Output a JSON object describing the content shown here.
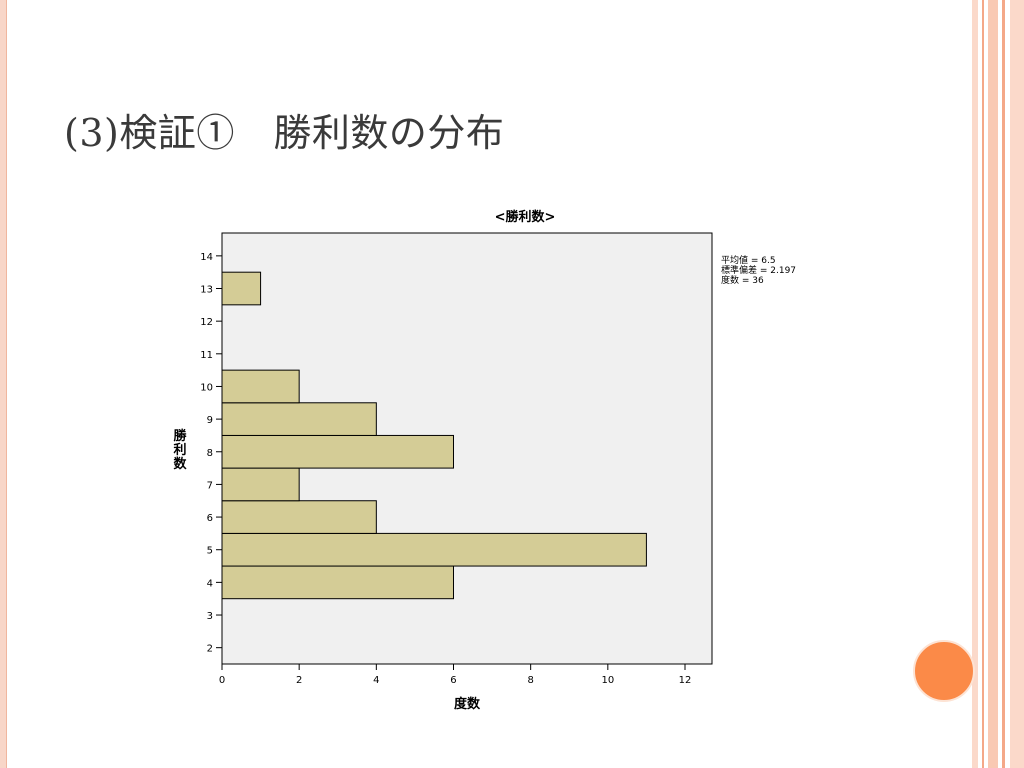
{
  "slide": {
    "title": "(3)検証①　勝利数の分布"
  },
  "theme": {
    "accent_circle": "#fb8a48",
    "bar_fill": "#d4cc96",
    "plot_bg": "#f0f0f0",
    "stripe_color": "#f6b79c"
  },
  "chart_data": {
    "type": "bar",
    "orientation": "horizontal",
    "title": "<勝利数>",
    "xlabel": "度数",
    "ylabel": "勝利数",
    "xlim": [
      0,
      12.7
    ],
    "ylim": [
      1.5,
      14.7
    ],
    "x_ticks": [
      "0",
      "2",
      "4",
      "6",
      "8",
      "10",
      "12"
    ],
    "y_ticks": [
      "2",
      "3",
      "4",
      "5",
      "6",
      "7",
      "8",
      "9",
      "10",
      "11",
      "12",
      "13",
      "14"
    ],
    "categories": [
      4,
      5,
      6,
      7,
      8,
      9,
      10,
      13
    ],
    "values": [
      6,
      11,
      4,
      2,
      6,
      4,
      2,
      1
    ],
    "stats": [
      {
        "label": "平均値 = 6.5"
      },
      {
        "label": "標準偏差 = 2.197"
      },
      {
        "label": "度数 = 36"
      }
    ],
    "grid": false
  }
}
